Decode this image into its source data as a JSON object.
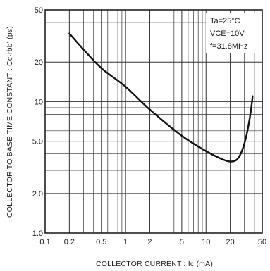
{
  "chart_data": {
    "type": "line",
    "title": "",
    "xlabel": "COLLECTOR  CURRENT : Ic (mA)",
    "ylabel": "COLLECTOR TO BASE TIME CONSTANT : Cc·rbb' (ps)",
    "x_scale": "log",
    "y_scale": "log",
    "xlim": [
      0.1,
      50
    ],
    "ylim": [
      1.0,
      50
    ],
    "x_tick_labels": [
      "0.1",
      "0.2",
      "0.5",
      "1",
      "2",
      "5",
      "10",
      "20",
      "50"
    ],
    "y_tick_labels": [
      "1.0",
      "2.0",
      "5.0",
      "10",
      "20",
      "50"
    ],
    "grid": true,
    "conditions": [
      "Ta=25°C",
      "VCE=10V",
      "f=31.8MHz"
    ],
    "series": [
      {
        "x": [
          0.2,
          0.3,
          0.5,
          1,
          2,
          5,
          10,
          15,
          20,
          25,
          30,
          35,
          38
        ],
        "y": [
          33,
          25,
          18,
          13,
          8.7,
          5.5,
          4.2,
          3.7,
          3.5,
          3.7,
          4.8,
          7.5,
          11
        ]
      }
    ]
  }
}
